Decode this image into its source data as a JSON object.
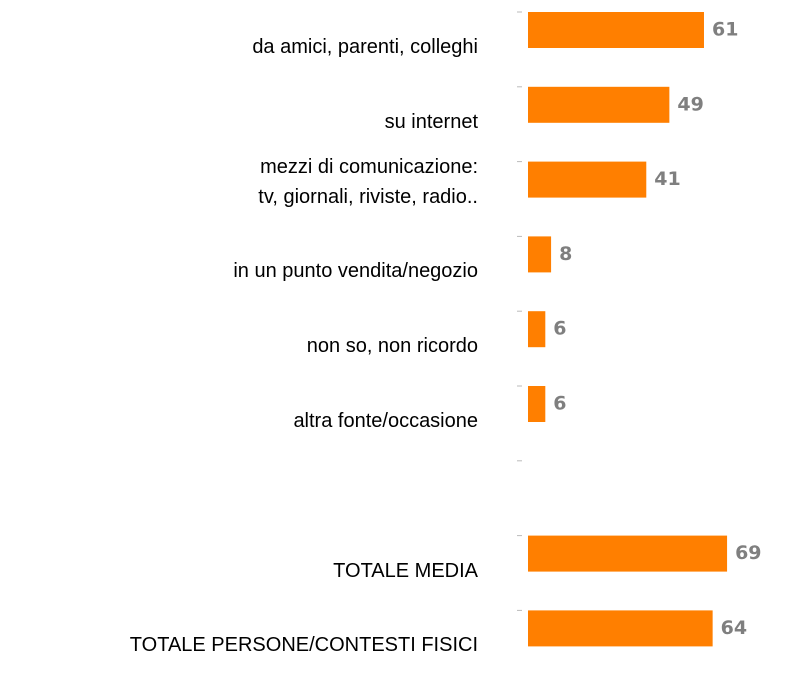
{
  "chart_data": {
    "type": "bar",
    "categories": [
      "da amici, parenti, colleghi",
      "su internet",
      "mezzi di comunicazione:\ntv, giornali, riviste, radio..",
      "in un punto vendita/negozio",
      "non so, non ricordo",
      "altra fonte/occasione",
      null,
      "TOTALE MEDIA",
      "TOTALE PERSONE/CONTESTI FISICI"
    ],
    "values": [
      61,
      49,
      41,
      8,
      6,
      6,
      null,
      69,
      64
    ],
    "color": "#ff7f00",
    "xlim": [
      0,
      100
    ]
  }
}
